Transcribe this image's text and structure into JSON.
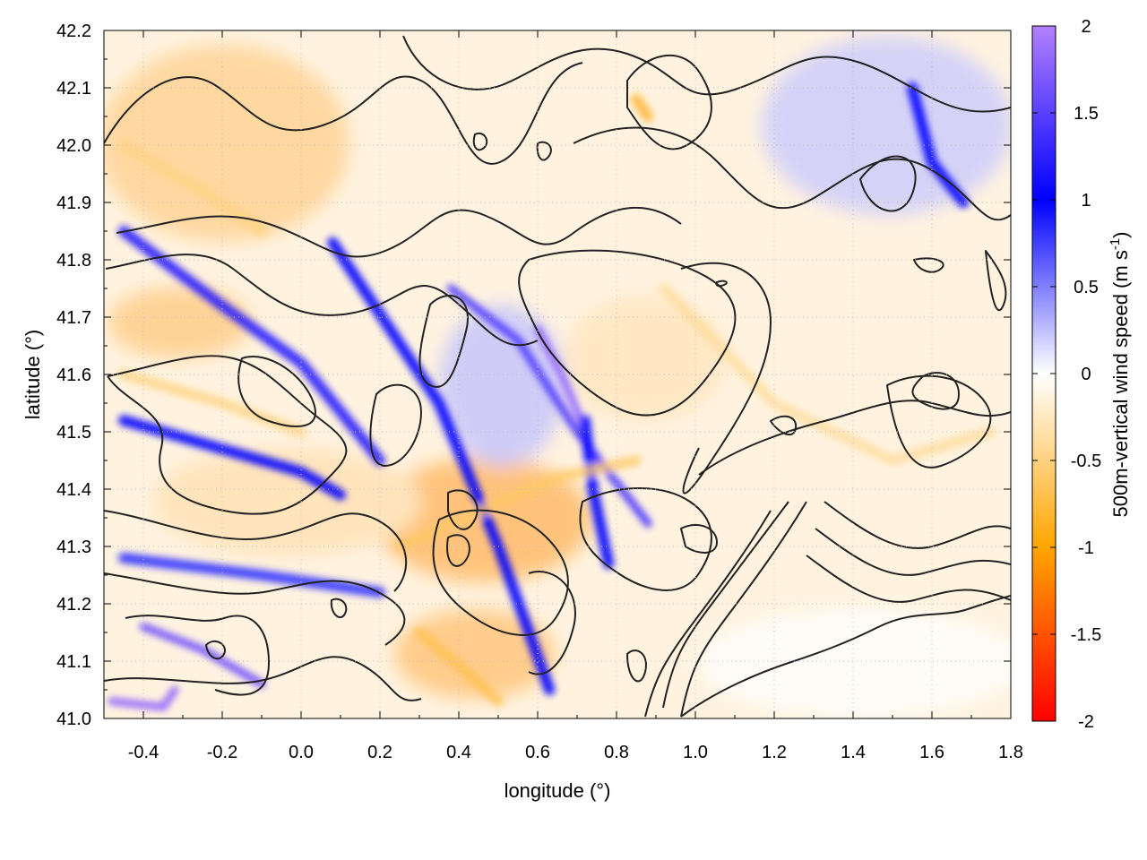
{
  "chart_data": {
    "type": "heatmap",
    "title": "",
    "xlabel": "longitude (°)",
    "ylabel": "latitude (°)",
    "xlim": [
      -0.5,
      1.8
    ],
    "ylim": [
      41.0,
      42.2
    ],
    "x_ticks": [
      "-0.4",
      "-0.2",
      "0.0",
      "0.2",
      "0.4",
      "0.6",
      "0.8",
      "1.0",
      "1.2",
      "1.4",
      "1.6",
      "1.8"
    ],
    "y_ticks": [
      "41.0",
      "41.1",
      "41.2",
      "41.3",
      "41.4",
      "41.5",
      "41.6",
      "41.7",
      "41.8",
      "41.9",
      "42.0",
      "42.1",
      "42.2"
    ],
    "grid": true,
    "colorbar": {
      "label": "500m-vertical wind speed (m s",
      "label_sup": "-1",
      "label_end": ")",
      "range": [
        -2,
        2
      ],
      "ticks": [
        "2",
        "1.5",
        "1",
        "0.5",
        "0",
        "-0.5",
        "-1",
        "-1.5",
        "-2"
      ],
      "stops": [
        {
          "value": -2,
          "color": "#ff0000"
        },
        {
          "value": -1,
          "color": "#ffa500"
        },
        {
          "value": 0,
          "color": "#ffffff"
        },
        {
          "value": 1,
          "color": "#0000ff"
        },
        {
          "value": 2,
          "color": "#b380ff"
        }
      ]
    },
    "contours": "terrain elevation contour lines (black)",
    "features": [
      {
        "kind": "updraft",
        "points": [
          [
            -0.45,
            41.85
          ],
          [
            -0.2,
            41.72
          ],
          [
            0.0,
            41.62
          ],
          [
            0.2,
            41.45
          ]
        ],
        "value": 1.2
      },
      {
        "kind": "updraft",
        "points": [
          [
            -0.45,
            41.52
          ],
          [
            -0.2,
            41.47
          ],
          [
            0.0,
            41.43
          ],
          [
            0.1,
            41.39
          ]
        ],
        "value": 1.0
      },
      {
        "kind": "updraft",
        "points": [
          [
            0.08,
            41.83
          ],
          [
            0.35,
            41.55
          ],
          [
            0.5,
            41.3
          ],
          [
            0.63,
            41.05
          ]
        ],
        "value": 1.0
      },
      {
        "kind": "updraft",
        "points": [
          [
            0.38,
            41.75
          ],
          [
            0.55,
            41.66
          ],
          [
            0.7,
            41.5
          ],
          [
            0.88,
            41.34
          ]
        ],
        "value": 1.4
      },
      {
        "kind": "updraft",
        "points": [
          [
            0.6,
            41.68
          ],
          [
            0.66,
            41.6
          ],
          [
            0.71,
            41.52
          ]
        ],
        "value": 1.8
      },
      {
        "kind": "updraft",
        "points": [
          [
            0.72,
            41.52
          ],
          [
            0.74,
            41.4
          ],
          [
            0.78,
            41.27
          ]
        ],
        "value": 1.0
      },
      {
        "kind": "updraft",
        "points": [
          [
            -0.4,
            41.16
          ],
          [
            -0.25,
            41.12
          ],
          [
            -0.1,
            41.06
          ]
        ],
        "value": 1.6
      },
      {
        "kind": "updraft",
        "points": [
          [
            -0.48,
            41.03
          ],
          [
            -0.35,
            41.02
          ],
          [
            -0.32,
            41.05
          ]
        ],
        "value": 1.8
      },
      {
        "kind": "updraft",
        "points": [
          [
            -0.45,
            41.28
          ],
          [
            -0.1,
            41.25
          ],
          [
            0.2,
            41.22
          ]
        ],
        "value": 0.8
      },
      {
        "kind": "updraft",
        "points": [
          [
            1.55,
            42.1
          ],
          [
            1.6,
            41.97
          ],
          [
            1.68,
            41.9
          ]
        ],
        "value": 1.0
      },
      {
        "kind": "downdraft",
        "points": [
          [
            0.25,
            41.3
          ],
          [
            0.45,
            41.36
          ],
          [
            0.65,
            41.42
          ],
          [
            0.85,
            41.45
          ]
        ],
        "value": -0.6
      },
      {
        "kind": "downdraft",
        "points": [
          [
            0.3,
            41.15
          ],
          [
            0.42,
            41.08
          ],
          [
            0.5,
            41.03
          ]
        ],
        "value": -0.7
      },
      {
        "kind": "downdraft",
        "points": [
          [
            -0.45,
            41.6
          ],
          [
            -0.2,
            41.55
          ],
          [
            0.0,
            41.5
          ]
        ],
        "value": -0.5
      },
      {
        "kind": "downdraft",
        "points": [
          [
            0.85,
            42.08
          ],
          [
            0.88,
            42.05
          ]
        ],
        "value": -0.9
      },
      {
        "kind": "downdraft",
        "points": [
          [
            -0.45,
            42.0
          ],
          [
            -0.25,
            41.92
          ],
          [
            -0.1,
            41.85
          ]
        ],
        "value": -0.5
      },
      {
        "kind": "downdraft",
        "points": [
          [
            0.92,
            41.75
          ],
          [
            1.2,
            41.55
          ],
          [
            1.5,
            41.45
          ],
          [
            1.75,
            41.5
          ]
        ],
        "value": -0.4
      }
    ]
  }
}
